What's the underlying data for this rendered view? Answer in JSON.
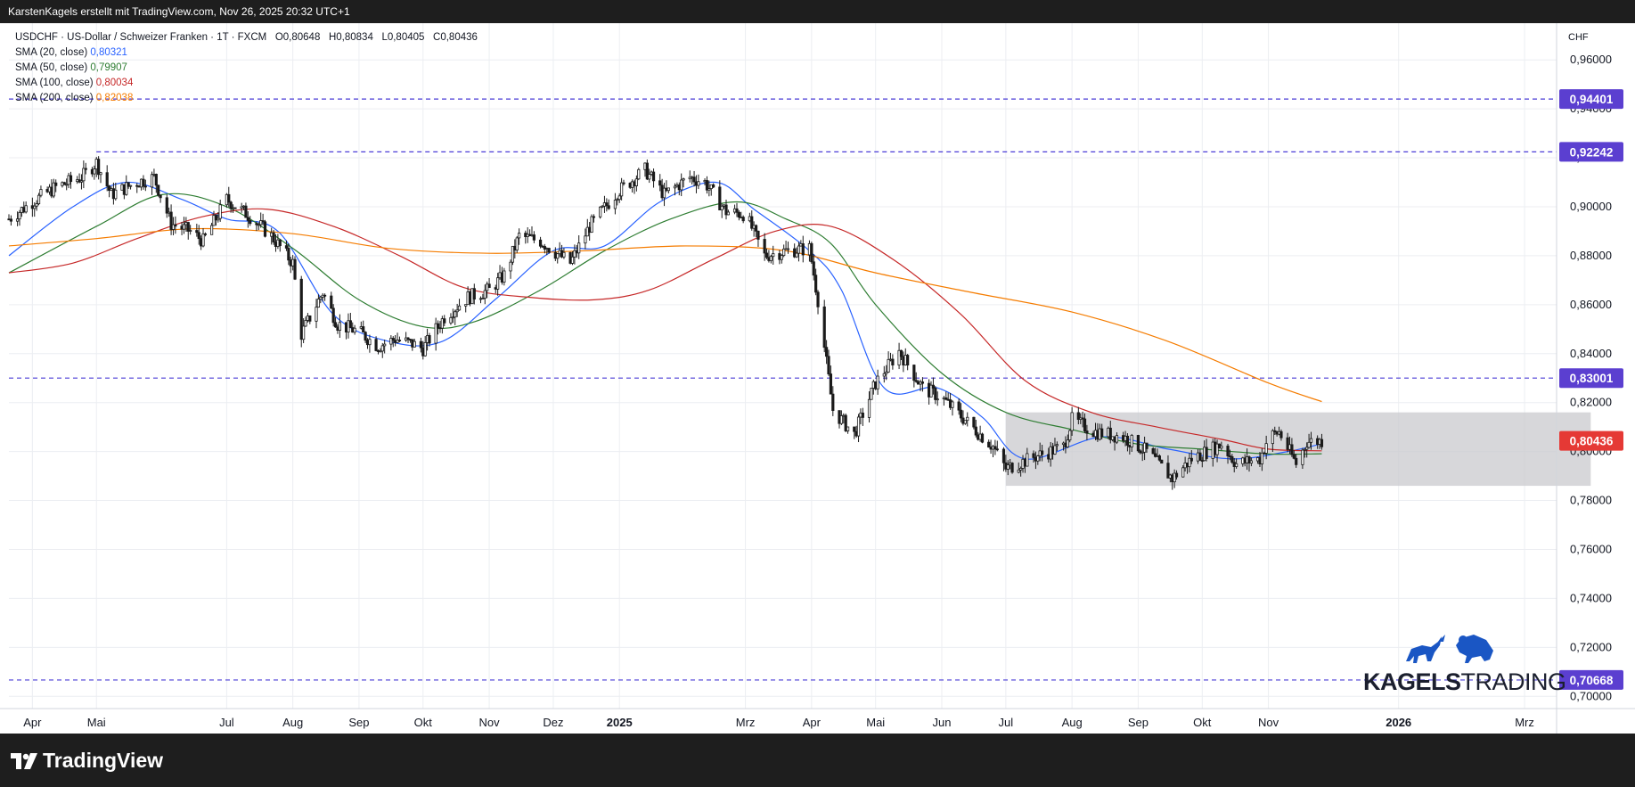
{
  "header": {
    "publisher_line": "KarstenKagels erstellt mit TradingView.com, Nov 26, 2025 20:32 UTC+1"
  },
  "legend": {
    "symbol_line": "USDCHF · US-Dollar / Schweizer Franken · 1T · FXCM",
    "ohlc": {
      "o_label": "O",
      "o": "0,80648",
      "h_label": "H",
      "h": "0,80834",
      "l_label": "L",
      "l": "0,80405",
      "c_label": "C",
      "c": "0,80436"
    },
    "indicators": [
      {
        "label": "SMA (20, close)",
        "value": "0,80321",
        "color": "#2962ff"
      },
      {
        "label": "SMA (50, close)",
        "value": "0,79907",
        "color": "#2e7d32"
      },
      {
        "label": "SMA (100, close)",
        "value": "0,80034",
        "color": "#c62828"
      },
      {
        "label": "SMA (200, close)",
        "value": "0,82038",
        "color": "#f57c00"
      }
    ]
  },
  "price_axis": {
    "currency": "CHF"
  },
  "footer": {
    "brand": "TradingView"
  },
  "watermark": {
    "brand_bold": "KAGELS",
    "brand_light": "TRADING",
    "accent": "#1a56c4"
  },
  "colors": {
    "up": "#1a1a1a",
    "down": "#1a1a1a",
    "level_line": "#4a3cd6",
    "level_badge": "#5b3fd0",
    "last_price_badge": "#e53935",
    "range_box": "#c9c9ce"
  },
  "chart_data": {
    "type": "candlestick",
    "symbol": "USDCHF",
    "timeframe": "1T",
    "y_ticks": [
      "0,96000",
      "0,94000",
      "0,92000",
      "0,90000",
      "0,88000",
      "0,86000",
      "0,84000",
      "0,82000",
      "0,80000",
      "0,78000",
      "0,76000",
      "0,74000",
      "0,72000",
      "0,70000"
    ],
    "y_tick_values": [
      0.96,
      0.94,
      0.92,
      0.9,
      0.88,
      0.86,
      0.84,
      0.82,
      0.8,
      0.78,
      0.76,
      0.74,
      0.72,
      0.7
    ],
    "ylim": [
      0.695,
      0.975
    ],
    "x_ticks": [
      {
        "label": "Apr",
        "date": "2024-04-01",
        "bold": false
      },
      {
        "label": "Mai",
        "date": "2024-05-01",
        "bold": false
      },
      {
        "label": "Jul",
        "date": "2024-07-01",
        "bold": false
      },
      {
        "label": "Aug",
        "date": "2024-08-01",
        "bold": false
      },
      {
        "label": "Sep",
        "date": "2024-09-01",
        "bold": false
      },
      {
        "label": "Okt",
        "date": "2024-10-01",
        "bold": false
      },
      {
        "label": "Nov",
        "date": "2024-11-01",
        "bold": false
      },
      {
        "label": "Dez",
        "date": "2024-12-01",
        "bold": false
      },
      {
        "label": "2025",
        "date": "2025-01-01",
        "bold": true
      },
      {
        "label": "Mrz",
        "date": "2025-03-01",
        "bold": false
      },
      {
        "label": "Apr",
        "date": "2025-04-01",
        "bold": false
      },
      {
        "label": "Mai",
        "date": "2025-05-01",
        "bold": false
      },
      {
        "label": "Jun",
        "date": "2025-06-01",
        "bold": false
      },
      {
        "label": "Jul",
        "date": "2025-07-01",
        "bold": false
      },
      {
        "label": "Aug",
        "date": "2025-08-01",
        "bold": false
      },
      {
        "label": "Sep",
        "date": "2025-09-01",
        "bold": false
      },
      {
        "label": "Okt",
        "date": "2025-10-01",
        "bold": false
      },
      {
        "label": "Nov",
        "date": "2025-11-01",
        "bold": false
      },
      {
        "label": "2026",
        "date": "2026-01-01",
        "bold": true
      },
      {
        "label": "Mrz",
        "date": "2026-03-01",
        "bold": false
      }
    ],
    "xlim": [
      "2024-03-21",
      "2026-03-16"
    ],
    "horizontal_levels": [
      {
        "value": 0.94401,
        "label": "0,94401",
        "start": "2024-03-21"
      },
      {
        "value": 0.92242,
        "label": "0,92242",
        "start": "2024-05-01"
      },
      {
        "value": 0.83001,
        "label": "0,83001",
        "start": "2024-03-21"
      },
      {
        "value": 0.70668,
        "label": "0,70668",
        "start": "2024-03-21"
      }
    ],
    "last_price": {
      "value": 0.80436,
      "label": "0,80436"
    },
    "range_box": {
      "x0": "2025-07-01",
      "x1": "2026-04-01",
      "y0": 0.786,
      "y1": 0.816
    },
    "price_path": [
      [
        "2024-03-21",
        0.895
      ],
      [
        "2024-04-01",
        0.902
      ],
      [
        "2024-04-12",
        0.908
      ],
      [
        "2024-04-24",
        0.912
      ],
      [
        "2024-05-01",
        0.918
      ],
      [
        "2024-05-08",
        0.905
      ],
      [
        "2024-05-20",
        0.91
      ],
      [
        "2024-05-28",
        0.912
      ],
      [
        "2024-06-05",
        0.893
      ],
      [
        "2024-06-14",
        0.89
      ],
      [
        "2024-06-20",
        0.886
      ],
      [
        "2024-07-01",
        0.903
      ],
      [
        "2024-07-12",
        0.896
      ],
      [
        "2024-07-22",
        0.888
      ],
      [
        "2024-08-01",
        0.877
      ],
      [
        "2024-08-05",
        0.848
      ],
      [
        "2024-08-15",
        0.865
      ],
      [
        "2024-08-22",
        0.852
      ],
      [
        "2024-09-01",
        0.849
      ],
      [
        "2024-09-10",
        0.843
      ],
      [
        "2024-09-18",
        0.846
      ],
      [
        "2024-09-26",
        0.844
      ],
      [
        "2024-10-01",
        0.842
      ],
      [
        "2024-10-11",
        0.855
      ],
      [
        "2024-10-22",
        0.863
      ],
      [
        "2024-11-01",
        0.866
      ],
      [
        "2024-11-08",
        0.872
      ],
      [
        "2024-11-15",
        0.888
      ],
      [
        "2024-11-25",
        0.886
      ],
      [
        "2024-12-01",
        0.882
      ],
      [
        "2024-12-09",
        0.877
      ],
      [
        "2024-12-18",
        0.892
      ],
      [
        "2024-12-31",
        0.906
      ],
      [
        "2025-01-13",
        0.915
      ],
      [
        "2025-01-22",
        0.905
      ],
      [
        "2025-02-03",
        0.912
      ],
      [
        "2025-02-10",
        0.91
      ],
      [
        "2025-02-20",
        0.898
      ],
      [
        "2025-03-01",
        0.897
      ],
      [
        "2025-03-10",
        0.88
      ],
      [
        "2025-03-20",
        0.882
      ],
      [
        "2025-03-31",
        0.883
      ],
      [
        "2025-04-04",
        0.862
      ],
      [
        "2025-04-11",
        0.817
      ],
      [
        "2025-04-21",
        0.807
      ],
      [
        "2025-05-01",
        0.828
      ],
      [
        "2025-05-12",
        0.841
      ],
      [
        "2025-05-23",
        0.826
      ],
      [
        "2025-06-01",
        0.822
      ],
      [
        "2025-06-13",
        0.812
      ],
      [
        "2025-06-25",
        0.802
      ],
      [
        "2025-07-01",
        0.793
      ],
      [
        "2025-07-15",
        0.798
      ],
      [
        "2025-07-28",
        0.802
      ],
      [
        "2025-08-01",
        0.813
      ],
      [
        "2025-08-12",
        0.808
      ],
      [
        "2025-08-25",
        0.806
      ],
      [
        "2025-09-05",
        0.8
      ],
      [
        "2025-09-17",
        0.789
      ],
      [
        "2025-09-26",
        0.797
      ],
      [
        "2025-10-10",
        0.803
      ],
      [
        "2025-10-17",
        0.795
      ],
      [
        "2025-10-28",
        0.797
      ],
      [
        "2025-11-01",
        0.806
      ],
      [
        "2025-11-06",
        0.808
      ],
      [
        "2025-11-14",
        0.795
      ],
      [
        "2025-11-19",
        0.804
      ],
      [
        "2025-11-26",
        0.8044
      ]
    ],
    "series": [
      {
        "name": "SMA (20, close)",
        "color": "#2962ff",
        "points": [
          [
            "2024-03-21",
            0.88
          ],
          [
            "2024-04-20",
            0.9
          ],
          [
            "2024-05-15",
            0.91
          ],
          [
            "2024-06-10",
            0.903
          ],
          [
            "2024-07-01",
            0.895
          ],
          [
            "2024-07-25",
            0.89
          ],
          [
            "2024-08-20",
            0.856
          ],
          [
            "2024-09-15",
            0.845
          ],
          [
            "2024-10-10",
            0.845
          ],
          [
            "2024-11-05",
            0.863
          ],
          [
            "2024-12-01",
            0.882
          ],
          [
            "2024-12-25",
            0.884
          ],
          [
            "2025-01-20",
            0.902
          ],
          [
            "2025-02-15",
            0.91
          ],
          [
            "2025-03-05",
            0.899
          ],
          [
            "2025-03-31",
            0.882
          ],
          [
            "2025-04-15",
            0.866
          ],
          [
            "2025-05-05",
            0.826
          ],
          [
            "2025-05-30",
            0.826
          ],
          [
            "2025-06-20",
            0.814
          ],
          [
            "2025-07-10",
            0.797
          ],
          [
            "2025-08-15",
            0.806
          ],
          [
            "2025-09-15",
            0.801
          ],
          [
            "2025-10-15",
            0.797
          ],
          [
            "2025-11-10",
            0.8
          ],
          [
            "2025-11-26",
            0.8032
          ]
        ]
      },
      {
        "name": "SMA (50, close)",
        "color": "#2e7d32",
        "points": [
          [
            "2024-03-21",
            0.873
          ],
          [
            "2024-05-01",
            0.892
          ],
          [
            "2024-06-01",
            0.905
          ],
          [
            "2024-07-01",
            0.9
          ],
          [
            "2024-08-01",
            0.883
          ],
          [
            "2024-09-01",
            0.862
          ],
          [
            "2024-10-01",
            0.851
          ],
          [
            "2024-10-25",
            0.853
          ],
          [
            "2024-11-25",
            0.866
          ],
          [
            "2024-12-25",
            0.882
          ],
          [
            "2025-01-25",
            0.895
          ],
          [
            "2025-02-25",
            0.902
          ],
          [
            "2025-03-20",
            0.895
          ],
          [
            "2025-04-10",
            0.885
          ],
          [
            "2025-05-01",
            0.86
          ],
          [
            "2025-06-01",
            0.832
          ],
          [
            "2025-07-01",
            0.816
          ],
          [
            "2025-08-01",
            0.809
          ],
          [
            "2025-09-01",
            0.803
          ],
          [
            "2025-10-01",
            0.801
          ],
          [
            "2025-11-01",
            0.799
          ],
          [
            "2025-11-26",
            0.7991
          ]
        ]
      },
      {
        "name": "SMA (100, close)",
        "color": "#c62828",
        "points": [
          [
            "2024-03-21",
            0.873
          ],
          [
            "2024-04-20",
            0.877
          ],
          [
            "2024-05-20",
            0.887
          ],
          [
            "2024-06-20",
            0.896
          ],
          [
            "2024-07-20",
            0.899
          ],
          [
            "2024-08-20",
            0.892
          ],
          [
            "2024-09-20",
            0.88
          ],
          [
            "2024-10-20",
            0.867
          ],
          [
            "2024-11-20",
            0.863
          ],
          [
            "2024-12-20",
            0.862
          ],
          [
            "2025-01-15",
            0.866
          ],
          [
            "2025-02-15",
            0.879
          ],
          [
            "2025-03-15",
            0.89
          ],
          [
            "2025-04-10",
            0.892
          ],
          [
            "2025-05-10",
            0.878
          ],
          [
            "2025-06-10",
            0.856
          ],
          [
            "2025-07-10",
            0.829
          ],
          [
            "2025-08-10",
            0.816
          ],
          [
            "2025-09-10",
            0.81
          ],
          [
            "2025-10-10",
            0.805
          ],
          [
            "2025-11-01",
            0.801
          ],
          [
            "2025-11-26",
            0.8003
          ]
        ]
      },
      {
        "name": "SMA (200, close)",
        "color": "#f57c00",
        "points": [
          [
            "2024-03-21",
            0.884
          ],
          [
            "2024-05-01",
            0.887
          ],
          [
            "2024-06-15",
            0.891
          ],
          [
            "2024-08-01",
            0.889
          ],
          [
            "2024-09-15",
            0.883
          ],
          [
            "2024-11-01",
            0.881
          ],
          [
            "2024-12-15",
            0.882
          ],
          [
            "2025-02-01",
            0.884
          ],
          [
            "2025-03-20",
            0.882
          ],
          [
            "2025-05-01",
            0.873
          ],
          [
            "2025-06-15",
            0.865
          ],
          [
            "2025-08-01",
            0.857
          ],
          [
            "2025-09-15",
            0.845
          ],
          [
            "2025-11-01",
            0.828
          ],
          [
            "2025-11-26",
            0.8204
          ]
        ]
      }
    ]
  }
}
